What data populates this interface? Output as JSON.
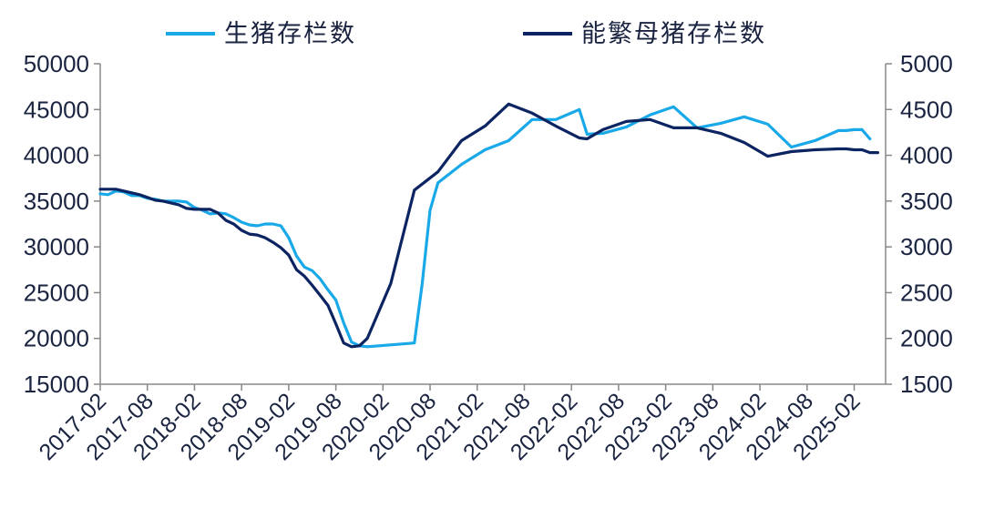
{
  "chart_data": {
    "type": "line",
    "legend_position": "top",
    "grid": false,
    "x_tick_labels": [
      "2017-02",
      "2017-08",
      "2018-02",
      "2018-08",
      "2019-02",
      "2019-08",
      "2020-02",
      "2020-08",
      "2021-02",
      "2021-08",
      "2022-02",
      "2022-08",
      "2023-02",
      "2023-08",
      "2024-02",
      "2024-08",
      "2025-02"
    ],
    "x_range": [
      "2017-02",
      "2025-06"
    ],
    "y_left": {
      "min": 15000,
      "max": 50000,
      "ticks": [
        "15000",
        "20000",
        "25000",
        "30000",
        "35000",
        "40000",
        "45000",
        "50000"
      ]
    },
    "y_right": {
      "min": 1500,
      "max": 5000,
      "ticks": [
        "1500",
        "2000",
        "2500",
        "3000",
        "3500",
        "4000",
        "4500",
        "5000"
      ]
    },
    "series": [
      {
        "name": "生猪存栏数",
        "axis": "left",
        "color": "#1aa9e8",
        "points": [
          [
            "2017-02",
            35800
          ],
          [
            "2017-03",
            35700
          ],
          [
            "2017-04",
            36100
          ],
          [
            "2017-05",
            36000
          ],
          [
            "2017-06",
            35600
          ],
          [
            "2017-07",
            35600
          ],
          [
            "2017-08",
            35300
          ],
          [
            "2017-09",
            35200
          ],
          [
            "2017-10",
            35000
          ],
          [
            "2017-11",
            35000
          ],
          [
            "2017-12",
            35000
          ],
          [
            "2018-01",
            34900
          ],
          [
            "2018-02",
            34300
          ],
          [
            "2018-03",
            34000
          ],
          [
            "2018-04",
            33600
          ],
          [
            "2018-05",
            33700
          ],
          [
            "2018-06",
            33600
          ],
          [
            "2018-07",
            33200
          ],
          [
            "2018-08",
            32700
          ],
          [
            "2018-09",
            32400
          ],
          [
            "2018-10",
            32300
          ],
          [
            "2018-11",
            32500
          ],
          [
            "2018-12",
            32500
          ],
          [
            "2019-01",
            32300
          ],
          [
            "2019-02",
            31000
          ],
          [
            "2019-03",
            29000
          ],
          [
            "2019-04",
            27800
          ],
          [
            "2019-05",
            27400
          ],
          [
            "2019-06",
            26500
          ],
          [
            "2019-07",
            25300
          ],
          [
            "2019-08",
            24200
          ],
          [
            "2019-09",
            21700
          ],
          [
            "2019-10",
            19600
          ],
          [
            "2019-11",
            19200
          ],
          [
            "2019-12",
            19100
          ],
          [
            "2020-06",
            19500
          ],
          [
            "2020-07",
            26000
          ],
          [
            "2020-08",
            34000
          ],
          [
            "2020-09",
            37000
          ],
          [
            "2020-12",
            39000
          ],
          [
            "2021-03",
            40600
          ],
          [
            "2021-06",
            41600
          ],
          [
            "2021-09",
            43900
          ],
          [
            "2021-12",
            43900
          ],
          [
            "2022-03",
            45000
          ],
          [
            "2022-04",
            42300
          ],
          [
            "2022-06",
            42400
          ],
          [
            "2022-09",
            43100
          ],
          [
            "2022-12",
            44400
          ],
          [
            "2023-03",
            45300
          ],
          [
            "2023-06",
            43000
          ],
          [
            "2023-09",
            43500
          ],
          [
            "2023-12",
            44200
          ],
          [
            "2024-03",
            43400
          ],
          [
            "2024-06",
            40900
          ],
          [
            "2024-09",
            41600
          ],
          [
            "2024-12",
            42700
          ],
          [
            "2025-01",
            42700
          ],
          [
            "2025-02",
            42800
          ],
          [
            "2025-03",
            42800
          ],
          [
            "2025-04",
            41800
          ]
        ]
      },
      {
        "name": "能繁母猪存栏数",
        "axis": "right",
        "color": "#0c2461",
        "points": [
          [
            "2017-02",
            3630
          ],
          [
            "2017-03",
            3630
          ],
          [
            "2017-04",
            3630
          ],
          [
            "2017-05",
            3610
          ],
          [
            "2017-06",
            3590
          ],
          [
            "2017-07",
            3570
          ],
          [
            "2017-08",
            3540
          ],
          [
            "2017-09",
            3510
          ],
          [
            "2017-10",
            3500
          ],
          [
            "2017-11",
            3480
          ],
          [
            "2017-12",
            3460
          ],
          [
            "2018-01",
            3420
          ],
          [
            "2018-02",
            3410
          ],
          [
            "2018-03",
            3410
          ],
          [
            "2018-04",
            3410
          ],
          [
            "2018-05",
            3370
          ],
          [
            "2018-06",
            3290
          ],
          [
            "2018-07",
            3250
          ],
          [
            "2018-08",
            3180
          ],
          [
            "2018-09",
            3140
          ],
          [
            "2018-10",
            3130
          ],
          [
            "2018-11",
            3100
          ],
          [
            "2018-12",
            3050
          ],
          [
            "2019-01",
            2990
          ],
          [
            "2019-02",
            2910
          ],
          [
            "2019-03",
            2750
          ],
          [
            "2019-04",
            2680
          ],
          [
            "2019-05",
            2580
          ],
          [
            "2019-06",
            2470
          ],
          [
            "2019-07",
            2360
          ],
          [
            "2019-08",
            2160
          ],
          [
            "2019-09",
            1950
          ],
          [
            "2019-10",
            1910
          ],
          [
            "2019-11",
            1920
          ],
          [
            "2019-12",
            2000
          ],
          [
            "2020-03",
            2600
          ],
          [
            "2020-06",
            3620
          ],
          [
            "2020-09",
            3820
          ],
          [
            "2020-12",
            4160
          ],
          [
            "2021-03",
            4320
          ],
          [
            "2021-06",
            4560
          ],
          [
            "2021-09",
            4460
          ],
          [
            "2021-12",
            4320
          ],
          [
            "2022-03",
            4190
          ],
          [
            "2022-04",
            4180
          ],
          [
            "2022-06",
            4280
          ],
          [
            "2022-09",
            4370
          ],
          [
            "2022-12",
            4390
          ],
          [
            "2023-03",
            4300
          ],
          [
            "2023-06",
            4300
          ],
          [
            "2023-09",
            4240
          ],
          [
            "2023-12",
            4140
          ],
          [
            "2024-03",
            3990
          ],
          [
            "2024-06",
            4040
          ],
          [
            "2024-09",
            4060
          ],
          [
            "2024-12",
            4070
          ],
          [
            "2025-01",
            4070
          ],
          [
            "2025-02",
            4060
          ],
          [
            "2025-03",
            4060
          ],
          [
            "2025-04",
            4030
          ],
          [
            "2025-05",
            4030
          ]
        ]
      }
    ]
  }
}
